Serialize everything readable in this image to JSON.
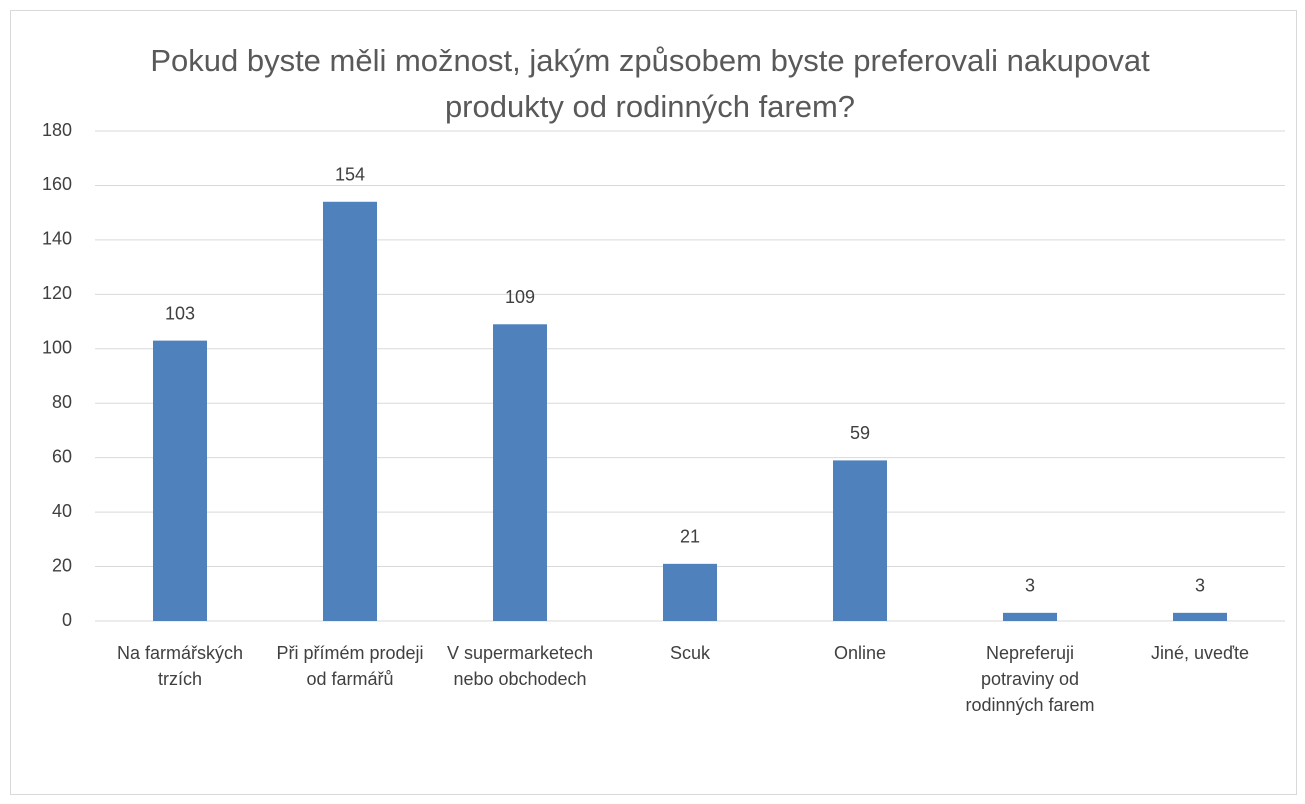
{
  "chart_data": {
    "type": "bar",
    "title": "Pokud byste měli možnost, jakým způsobem byste preferovali nakupovat produkty od rodinných farem?",
    "categories": [
      "Na farmářských trzích",
      "Při přímém prodeji od farmářů",
      "V supermarketech nebo obchodech",
      "Scuk",
      "Online",
      "Nepreferuji potraviny od rodinných farem",
      "Jiné, uveďte"
    ],
    "values": [
      103,
      154,
      109,
      21,
      59,
      3,
      3
    ],
    "color": "#4f81bd",
    "ylim": [
      0,
      180
    ],
    "yticks": [
      0,
      20,
      40,
      60,
      80,
      100,
      120,
      140,
      160,
      180
    ],
    "grid": true
  }
}
